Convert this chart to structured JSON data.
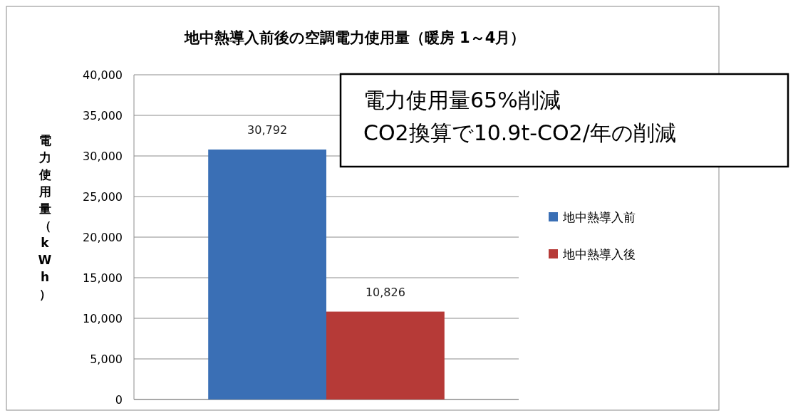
{
  "chart_data": {
    "type": "bar",
    "title": "地中熱導入前後の空調電力使用量（暖房 1～4月）",
    "ylabel": "電力使用量（kWh）",
    "categories": [
      null
    ],
    "series": [
      {
        "name": "地中熱導入前",
        "color": "#3a6fb5",
        "values": [
          30792
        ],
        "value_labels": [
          "30,792"
        ]
      },
      {
        "name": "地中熱導入後",
        "color": "#b63a37",
        "values": [
          10826
        ],
        "value_labels": [
          "10,826"
        ]
      }
    ],
    "ylim": [
      0,
      40000
    ],
    "yticks": [
      0,
      {
        "value": 5000,
        "label": "5,000"
      },
      {
        "value": 10000,
        "label": "10,000"
      },
      {
        "value": 15000,
        "label": "15,000"
      },
      {
        "value": 20000,
        "label": "20,000"
      },
      {
        "value": 25000,
        "label": "25,000"
      },
      {
        "value": 30000,
        "label": "30,000"
      },
      {
        "value": 35000,
        "label": "35,000"
      },
      {
        "value": 40000,
        "label": "40,000"
      }
    ],
    "grid": "y",
    "legend": "right",
    "annotations": [
      "電力使用量65%削減",
      "CO2換算で10.9t-CO2/年の削減"
    ]
  }
}
